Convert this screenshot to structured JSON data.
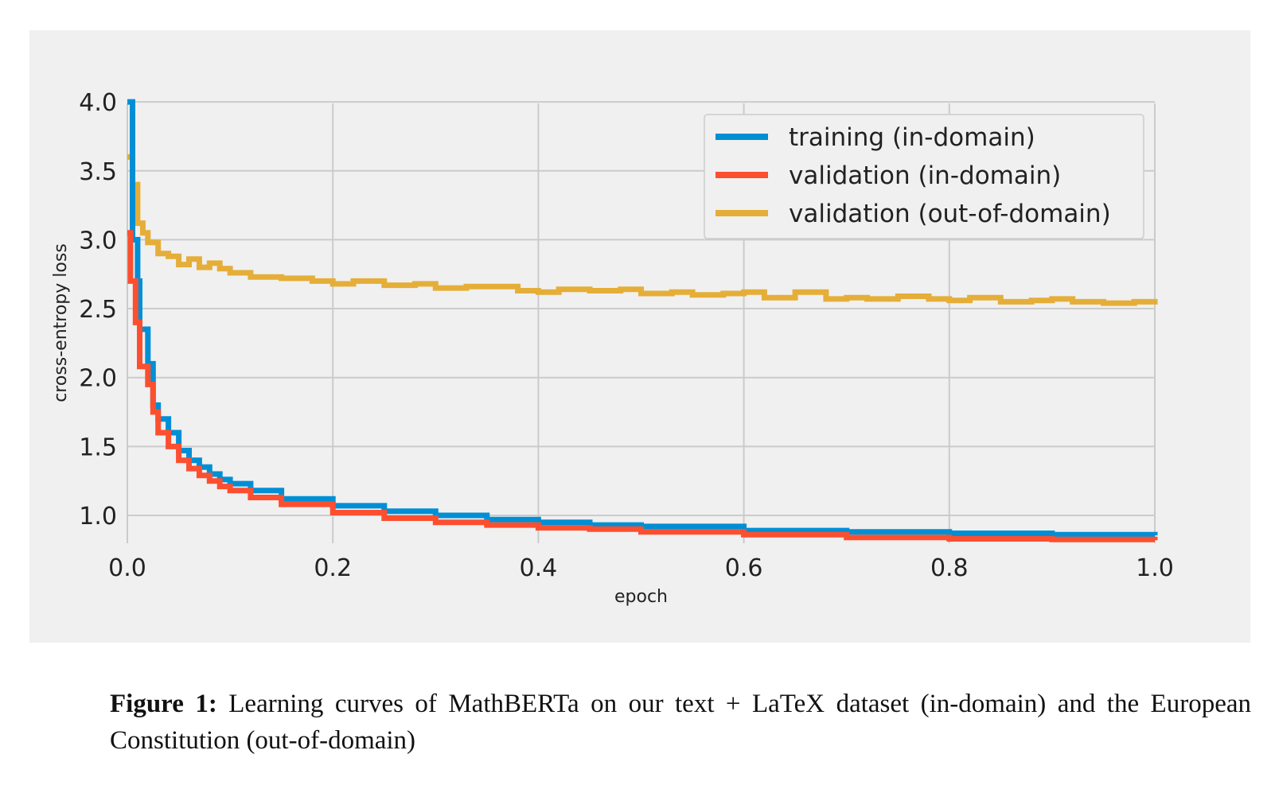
{
  "caption": {
    "label": "Figure 1:",
    "text": "Learning curves of MathBERTa on our text + LaTeX dataset (in-domain) and the European Constitution (out-of-domain)"
  },
  "chart_data": {
    "type": "line",
    "xlabel": "epoch",
    "ylabel": "cross-entropy loss",
    "xlim": [
      0.0,
      1.0
    ],
    "ylim": [
      0.8,
      4.0
    ],
    "xticks": [
      "0.0",
      "0.2",
      "0.4",
      "0.6",
      "0.8",
      "1.0"
    ],
    "yticks": [
      "1.0",
      "1.5",
      "2.0",
      "2.5",
      "3.0",
      "3.5",
      "4.0"
    ],
    "grid": true,
    "legend_position": "top-right",
    "colors": {
      "training": "#008fd5",
      "validation_in": "#fc4f30",
      "validation_out": "#e5ae38",
      "background": "#f0f0f0",
      "grid": "#cbcbcb"
    },
    "series": [
      {
        "name": "training (in-domain)",
        "color": "#008fd5",
        "x": [
          0.0,
          0.005,
          0.01,
          0.012,
          0.02,
          0.025,
          0.03,
          0.04,
          0.05,
          0.06,
          0.07,
          0.08,
          0.09,
          0.1,
          0.12,
          0.15,
          0.2,
          0.25,
          0.3,
          0.35,
          0.4,
          0.45,
          0.5,
          0.6,
          0.7,
          0.8,
          0.9,
          1.0
        ],
        "y": [
          4.0,
          3.0,
          2.7,
          2.35,
          2.1,
          1.8,
          1.7,
          1.6,
          1.47,
          1.4,
          1.35,
          1.3,
          1.26,
          1.23,
          1.18,
          1.12,
          1.07,
          1.03,
          1.0,
          0.97,
          0.95,
          0.93,
          0.92,
          0.89,
          0.88,
          0.87,
          0.86,
          0.855
        ]
      },
      {
        "name": "validation (in-domain)",
        "color": "#fc4f30",
        "x": [
          0.0,
          0.003,
          0.008,
          0.012,
          0.02,
          0.025,
          0.03,
          0.04,
          0.05,
          0.06,
          0.07,
          0.08,
          0.09,
          0.1,
          0.12,
          0.15,
          0.2,
          0.25,
          0.3,
          0.35,
          0.4,
          0.45,
          0.5,
          0.6,
          0.7,
          0.8,
          0.9,
          1.0
        ],
        "y": [
          3.05,
          2.7,
          2.4,
          2.08,
          1.95,
          1.75,
          1.6,
          1.5,
          1.4,
          1.34,
          1.29,
          1.25,
          1.21,
          1.18,
          1.13,
          1.08,
          1.02,
          0.98,
          0.95,
          0.93,
          0.91,
          0.9,
          0.88,
          0.86,
          0.84,
          0.83,
          0.825,
          0.82
        ]
      },
      {
        "name": "validation (out-of-domain)",
        "color": "#e5ae38",
        "x": [
          0.0,
          0.005,
          0.01,
          0.015,
          0.02,
          0.03,
          0.04,
          0.05,
          0.06,
          0.07,
          0.08,
          0.09,
          0.1,
          0.12,
          0.15,
          0.18,
          0.2,
          0.22,
          0.25,
          0.28,
          0.3,
          0.33,
          0.35,
          0.38,
          0.4,
          0.42,
          0.45,
          0.48,
          0.5,
          0.53,
          0.55,
          0.58,
          0.6,
          0.62,
          0.65,
          0.68,
          0.7,
          0.72,
          0.75,
          0.78,
          0.8,
          0.82,
          0.85,
          0.88,
          0.9,
          0.92,
          0.95,
          0.98,
          1.0
        ],
        "y": [
          3.6,
          3.4,
          3.12,
          3.05,
          2.98,
          2.9,
          2.88,
          2.82,
          2.86,
          2.8,
          2.83,
          2.79,
          2.76,
          2.73,
          2.72,
          2.7,
          2.68,
          2.7,
          2.67,
          2.68,
          2.65,
          2.66,
          2.66,
          2.63,
          2.62,
          2.64,
          2.63,
          2.64,
          2.61,
          2.62,
          2.6,
          2.61,
          2.62,
          2.58,
          2.62,
          2.57,
          2.58,
          2.57,
          2.59,
          2.57,
          2.56,
          2.58,
          2.55,
          2.56,
          2.57,
          2.55,
          2.54,
          2.55,
          2.57
        ]
      }
    ]
  }
}
